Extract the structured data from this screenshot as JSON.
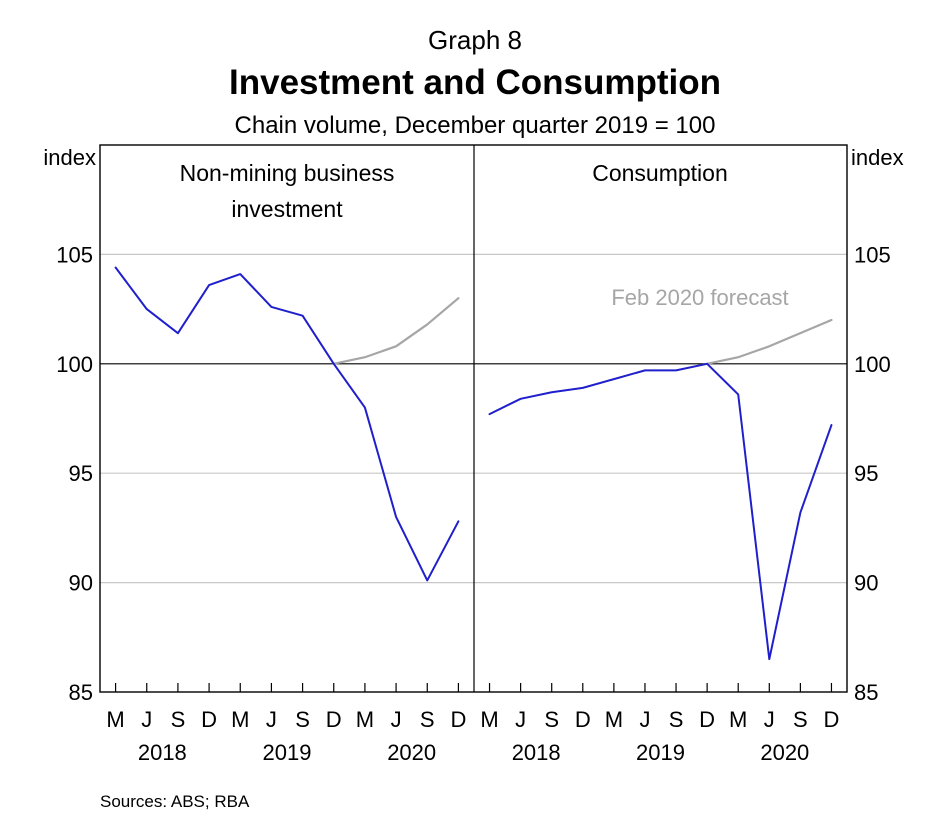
{
  "header": {
    "graph_number": "Graph 8",
    "title": "Investment and Consumption",
    "subtitle": "Chain volume, December quarter 2019 = 100"
  },
  "footer": {
    "sources": "Sources: ABS; RBA"
  },
  "chart_data": [
    {
      "type": "line",
      "panel_title_lines": [
        "Non-mining business",
        "investment"
      ],
      "ylabel_left": "index",
      "ylim": [
        85,
        110
      ],
      "y_ticks": [
        85,
        90,
        95,
        100,
        105
      ],
      "reference_line": 100,
      "x_ticks": [
        "M",
        "J",
        "S",
        "D",
        "M",
        "J",
        "S",
        "D",
        "M",
        "J",
        "S",
        "D"
      ],
      "x_years": [
        "2018",
        "2019",
        "2020"
      ],
      "series": [
        {
          "role": "actual",
          "color": "#1f1fcc",
          "x": [
            "2018-Q1",
            "2018-Q2",
            "2018-Q3",
            "2018-Q4",
            "2019-Q1",
            "2019-Q2",
            "2019-Q3",
            "2019-Q4",
            "2020-Q1",
            "2020-Q2",
            "2020-Q3",
            "2020-Q4"
          ],
          "values": [
            104.4,
            102.5,
            101.4,
            103.6,
            104.1,
            102.6,
            102.2,
            100.0,
            98.0,
            93.0,
            90.1,
            92.8
          ]
        },
        {
          "role": "forecast",
          "color": "#a6a6a6",
          "x": [
            "2019-Q4",
            "2020-Q1",
            "2020-Q2",
            "2020-Q3",
            "2020-Q4"
          ],
          "values": [
            100.0,
            100.3,
            100.8,
            101.8,
            103.0
          ]
        }
      ]
    },
    {
      "type": "line",
      "panel_title_lines": [
        "Consumption"
      ],
      "ylabel_right": "index",
      "ylim": [
        85,
        110
      ],
      "y_ticks": [
        85,
        90,
        95,
        100,
        105
      ],
      "reference_line": 100,
      "annotation": "Feb 2020 forecast",
      "x_ticks": [
        "M",
        "J",
        "S",
        "D",
        "M",
        "J",
        "S",
        "D",
        "M",
        "J",
        "S",
        "D"
      ],
      "x_years": [
        "2018",
        "2019",
        "2020"
      ],
      "series": [
        {
          "role": "actual",
          "color": "#1f1fcc",
          "x": [
            "2018-Q1",
            "2018-Q2",
            "2018-Q3",
            "2018-Q4",
            "2019-Q1",
            "2019-Q2",
            "2019-Q3",
            "2019-Q4",
            "2020-Q1",
            "2020-Q2",
            "2020-Q3",
            "2020-Q4"
          ],
          "values": [
            97.7,
            98.4,
            98.7,
            98.9,
            99.3,
            99.7,
            99.7,
            100.0,
            98.6,
            86.5,
            93.2,
            97.2
          ]
        },
        {
          "role": "forecast",
          "color": "#a6a6a6",
          "x": [
            "2019-Q4",
            "2020-Q1",
            "2020-Q2",
            "2020-Q3",
            "2020-Q4"
          ],
          "values": [
            100.0,
            100.3,
            100.8,
            101.4,
            102.0
          ]
        }
      ]
    }
  ]
}
